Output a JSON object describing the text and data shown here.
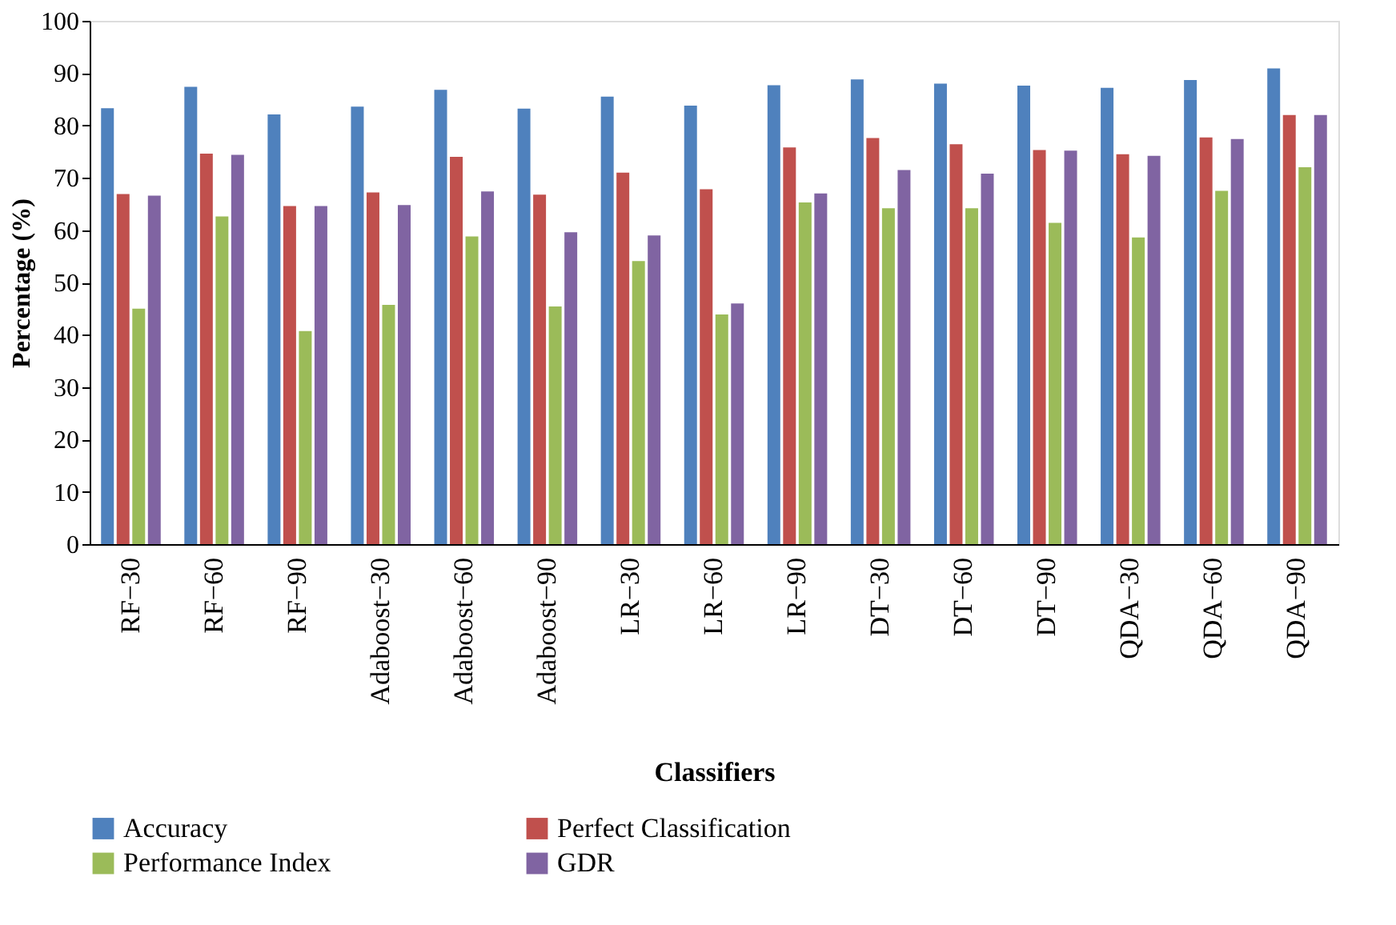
{
  "chart_data": {
    "type": "bar",
    "xlabel": "Classifiers",
    "ylabel": "Percentage (%)",
    "categories": [
      "RF−30",
      "RF−60",
      "RF−90",
      "Adaboost−30",
      "Adaboost−60",
      "Adaboost−90",
      "LR−30",
      "LR−60",
      "LR−90",
      "DT−30",
      "DT−60",
      "DT−90",
      "QDA−30",
      "QDA−60",
      "QDA−90"
    ],
    "series": [
      {
        "name": "Accuracy",
        "color": "#4f81bd",
        "values": [
          83.3,
          87.4,
          82.1,
          83.6,
          86.8,
          83.2,
          85.5,
          83.8,
          87.7,
          88.8,
          88.0,
          87.6,
          87.2,
          88.7,
          90.9
        ]
      },
      {
        "name": "Perfect Classification",
        "color": "#c0504d",
        "values": [
          66.9,
          74.6,
          64.6,
          67.2,
          74.0,
          66.8,
          71.0,
          67.8,
          75.8,
          77.6,
          76.4,
          75.3,
          74.5,
          77.7,
          82.0
        ]
      },
      {
        "name": "Performance Index",
        "color": "#9bbb59",
        "values": [
          45.0,
          62.6,
          40.7,
          45.7,
          58.8,
          45.4,
          54.1,
          43.9,
          65.3,
          64.2,
          64.2,
          61.4,
          58.6,
          67.5,
          72.0
        ]
      },
      {
        "name": "GDR",
        "color": "#8064a2",
        "values": [
          66.6,
          74.4,
          64.6,
          64.8,
          67.4,
          59.6,
          59.0,
          46.0,
          67.0,
          71.5,
          70.8,
          75.2,
          74.2,
          77.4,
          82.0
        ]
      }
    ],
    "ylim": [
      0,
      100
    ],
    "yticks": [
      0,
      10,
      20,
      30,
      40,
      50,
      60,
      70,
      80,
      90,
      100
    ],
    "grid": false,
    "legend": "bottom"
  }
}
